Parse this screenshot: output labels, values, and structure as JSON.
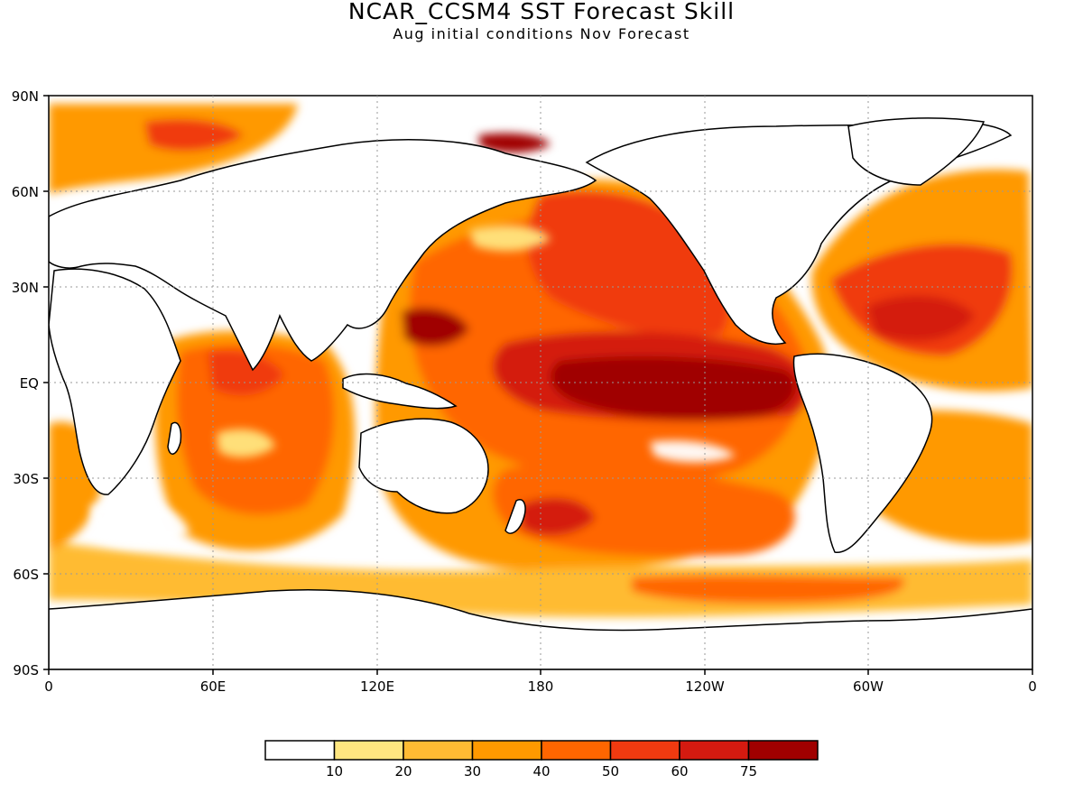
{
  "title": "NCAR_CCSM4 SST Forecast Skill",
  "subtitle": "Aug initial conditions  Nov Forecast",
  "map": {
    "lat_ticks": [
      "90N",
      "60N",
      "30N",
      "EQ",
      "30S",
      "60S",
      "90S"
    ],
    "lon_ticks": [
      "0",
      "60E",
      "120E",
      "180",
      "120W",
      "60W",
      "0"
    ],
    "grid": "dotted"
  },
  "colorbar": {
    "levels": [
      "10",
      "20",
      "30",
      "40",
      "50",
      "60",
      "75"
    ],
    "colors": [
      "#ffffff",
      "#ffe680",
      "#ffbb33",
      "#ff9900",
      "#ff6600",
      "#f03a10",
      "#d41a10",
      "#a00000"
    ]
  }
}
